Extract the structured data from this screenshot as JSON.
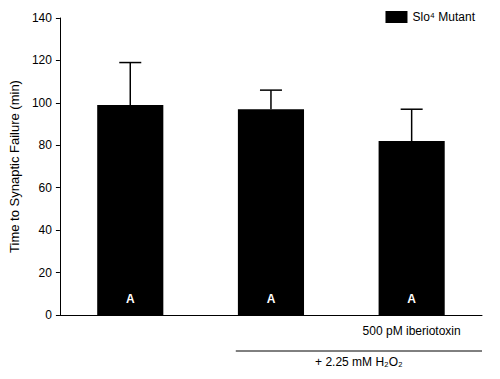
{
  "chart_data": {
    "type": "bar",
    "categories": [
      null,
      null,
      "500 pM iberiotoxin"
    ],
    "series": [
      {
        "name": "Slo⁴ Mutant",
        "color": "#000000",
        "values": [
          99,
          97,
          82
        ],
        "errors": [
          20,
          9,
          15
        ]
      }
    ],
    "ylabel": "Time to Synaptic Failure (min)",
    "ylim": [
      0,
      140
    ],
    "yticks": [
      0,
      20,
      40,
      60,
      80,
      100,
      120,
      140
    ],
    "grid": false,
    "legend": "upper right",
    "bar_annotations": [
      "A",
      "A",
      "A"
    ],
    "bracket": {
      "label": "+ 2.25 mM H₂O₂",
      "from": 1,
      "to": 2
    }
  }
}
